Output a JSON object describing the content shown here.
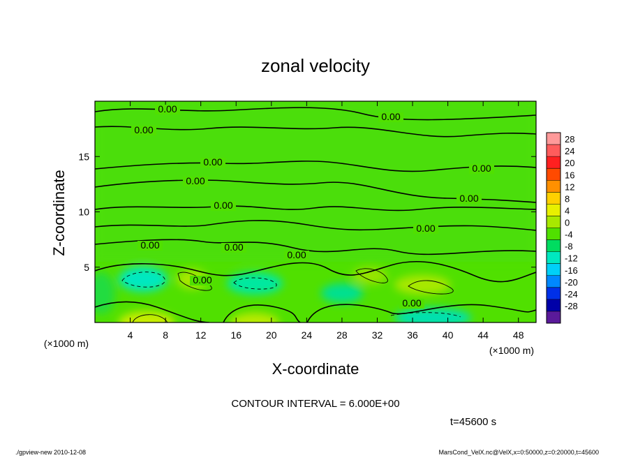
{
  "chart_data": {
    "type": "contour",
    "title": "zonal velocity",
    "x_label": "X-coordinate",
    "y_label": "Z-coordinate",
    "x_unit_left": "(×1000 m)",
    "x_unit_right": "(×1000 m)",
    "xlim": [
      0,
      50
    ],
    "xticks": [
      4,
      8,
      12,
      16,
      20,
      24,
      28,
      32,
      36,
      40,
      44,
      48
    ],
    "ylim": [
      0,
      20
    ],
    "yticks": [
      5,
      10,
      15
    ],
    "colorbar_lim": [
      -32,
      32
    ],
    "colorbar_levels": [
      28,
      24,
      20,
      16,
      12,
      8,
      4,
      0,
      -4,
      -8,
      -12,
      -16,
      -20,
      -24,
      -28
    ],
    "colorbar_colors": [
      "#ff9a9a",
      "#ff5c5c",
      "#ff2020",
      "#ff4a00",
      "#ff9000",
      "#ffd000",
      "#e8f000",
      "#a8e800",
      "#50e000",
      "#00dc60",
      "#00e8c0",
      "#00d0f8",
      "#0088ff",
      "#0030e8",
      "#0000a8",
      "#5a1a9a"
    ],
    "contour_labels": [
      "0.00",
      "0.00",
      "0.00",
      "0.00",
      "0.00",
      "0.00",
      "0.00",
      "0.00",
      "0.00",
      "0.00",
      "0.00",
      "0.00",
      "0.00",
      "0.00"
    ],
    "contour_interval": "CONTOUR INTERVAL = 6.000E+00",
    "time_label": "t=45600 s",
    "footer_left": "./gpview-new  2010-12-08",
    "footer_right": "MarsCond_VelX.nc@VelX,x=0:50000,z=0:20000,t=45600"
  }
}
